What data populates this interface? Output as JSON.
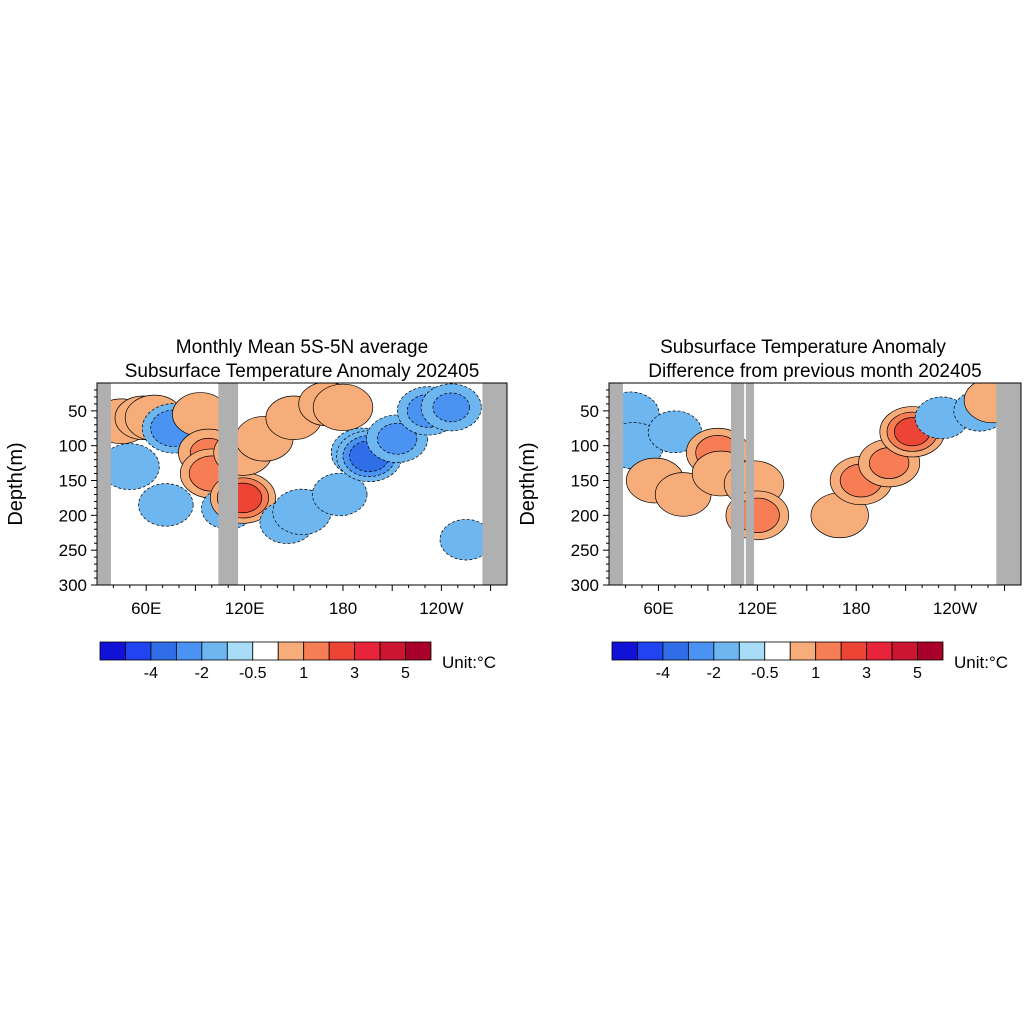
{
  "chart_data": [
    {
      "type": "contour",
      "title_lines": [
        "Monthly Mean 5S-5N average",
        "Subsurface Temperature Anomaly 202405"
      ],
      "ylabel": "Depth(m)",
      "xlabel": "",
      "ylim": [
        300,
        10
      ],
      "y_ticks": [
        50,
        100,
        150,
        200,
        250,
        300
      ],
      "x_ticks": [
        "60E",
        "120E",
        "180",
        "120W"
      ],
      "x_tick_lon": [
        60,
        120,
        180,
        240
      ],
      "x_range_lon": [
        30,
        280
      ],
      "land_mask_lon": [
        [
          30,
          38.5
        ],
        [
          104,
          116
        ],
        [
          265,
          280
        ]
      ],
      "features": [
        {
          "lon": 45,
          "depth": 65,
          "value": 1.2
        },
        {
          "lon": 58,
          "depth": 60,
          "value": 1.0
        },
        {
          "lon": 65,
          "depth": 60,
          "value": 1.3
        },
        {
          "lon": 77,
          "depth": 75,
          "value": -2.5
        },
        {
          "lon": 50,
          "depth": 130,
          "value": -1.4
        },
        {
          "lon": 72,
          "depth": 185,
          "value": -0.9
        },
        {
          "lon": 93,
          "depth": 55,
          "value": 1.0
        },
        {
          "lon": 98,
          "depth": 110,
          "value": 1.6
        },
        {
          "lon": 100,
          "depth": 140,
          "value": 2.3
        },
        {
          "lon": 110,
          "depth": 190,
          "value": -0.8
        },
        {
          "lon": 119,
          "depth": 175,
          "value": 3.2
        },
        {
          "lon": 119,
          "depth": 110,
          "value": 1.3
        },
        {
          "lon": 132,
          "depth": 90,
          "value": 1.2
        },
        {
          "lon": 150,
          "depth": 60,
          "value": 1.0
        },
        {
          "lon": 170,
          "depth": 40,
          "value": 1.0
        },
        {
          "lon": 180,
          "depth": 45,
          "value": 1.5
        },
        {
          "lon": 146,
          "depth": 210,
          "value": -0.9
        },
        {
          "lon": 155,
          "depth": 195,
          "value": -1.3
        },
        {
          "lon": 178,
          "depth": 170,
          "value": -0.9
        },
        {
          "lon": 192,
          "depth": 110,
          "value": -2.3
        },
        {
          "lon": 196,
          "depth": 115,
          "value": -3.4
        },
        {
          "lon": 213,
          "depth": 90,
          "value": -1.8
        },
        {
          "lon": 232,
          "depth": 50,
          "value": -2.0
        },
        {
          "lon": 246,
          "depth": 45,
          "value": -1.6
        },
        {
          "lon": 255,
          "depth": 235,
          "value": -0.7
        }
      ]
    },
    {
      "type": "contour",
      "title_lines": [
        "Subsurface Temperature Anomaly",
        "Difference from previous month 202405"
      ],
      "ylabel": "Depth(m)",
      "xlabel": "",
      "ylim": [
        300,
        10
      ],
      "y_ticks": [
        50,
        100,
        150,
        200,
        250,
        300
      ],
      "x_ticks": [
        "60E",
        "120E",
        "180",
        "120W"
      ],
      "x_tick_lon": [
        60,
        120,
        180,
        240
      ],
      "x_range_lon": [
        30,
        280
      ],
      "land_mask_lon": [
        [
          30,
          38.5
        ],
        [
          104,
          112
        ],
        [
          113,
          118
        ],
        [
          265,
          280
        ]
      ],
      "features": [
        {
          "lon": 43,
          "depth": 55,
          "value": -1.2
        },
        {
          "lon": 45,
          "depth": 100,
          "value": -1.5
        },
        {
          "lon": 70,
          "depth": 80,
          "value": -0.8
        },
        {
          "lon": 58,
          "depth": 150,
          "value": 1.2
        },
        {
          "lon": 75,
          "depth": 170,
          "value": 1.0
        },
        {
          "lon": 96,
          "depth": 110,
          "value": 2.2
        },
        {
          "lon": 98,
          "depth": 140,
          "value": 1.2
        },
        {
          "lon": 118,
          "depth": 155,
          "value": 1.5
        },
        {
          "lon": 120,
          "depth": 200,
          "value": 2.2
        },
        {
          "lon": 170,
          "depth": 200,
          "value": 1.2
        },
        {
          "lon": 183,
          "depth": 150,
          "value": 2.0
        },
        {
          "lon": 200,
          "depth": 125,
          "value": 1.8
        },
        {
          "lon": 214,
          "depth": 80,
          "value": 3.0
        },
        {
          "lon": 232,
          "depth": 60,
          "value": -0.8
        },
        {
          "lon": 255,
          "depth": 50,
          "value": -0.7
        },
        {
          "lon": 263,
          "depth": 35,
          "value": 1.2
        }
      ]
    }
  ],
  "colorbar": {
    "levels": [
      "",
      "-4",
      "",
      "-2",
      "",
      "-0.5",
      "",
      "1",
      "",
      "3",
      "",
      "5",
      ""
    ],
    "colors": [
      "#1212d6",
      "#1f44f0",
      "#2f6ee6",
      "#4b93f3",
      "#6db6f0",
      "#a8dcf7",
      "#ffffff",
      "#f7ad7a",
      "#f77d55",
      "#ec4536",
      "#e8243a",
      "#cc1531",
      "#a8002a"
    ],
    "unit": "Unit:°C"
  },
  "styles": {
    "land_color": "#b0b0b0",
    "positive_line": "#000000",
    "negative_line": "#000000"
  }
}
